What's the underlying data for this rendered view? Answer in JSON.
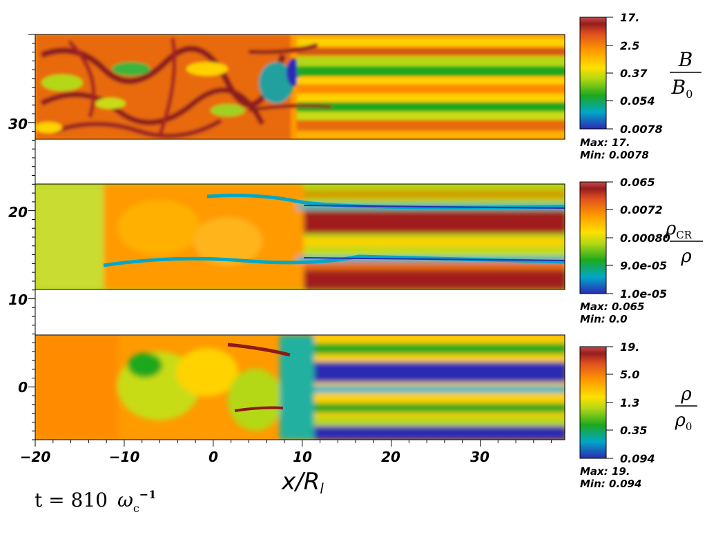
{
  "chart_data": {
    "type": "heatmap",
    "xlabel_main": "x/R",
    "xlabel_sub": "l",
    "xlim": [
      -20,
      39.5
    ],
    "ylim": [
      -6,
      40
    ],
    "xticks": [
      "−20",
      "−10",
      "0",
      "10",
      "20",
      "30"
    ],
    "yticks": [
      "0",
      "10",
      "20",
      "30"
    ],
    "time_prefix": "t = 810",
    "time_symbol": "ω",
    "time_sub": "c",
    "time_sup": "−1",
    "panels": [
      {
        "name": "B/B0",
        "label_num": "B",
        "label_den": "B",
        "label_den_sub": "0",
        "y_range": [
          28,
          40
        ],
        "colorbar_ticks": [
          "17.",
          "2.5",
          "0.37",
          "0.054",
          "0.0078"
        ],
        "max_text": "Max:  17.",
        "min_text": "Min:  0.0078",
        "scale": "log"
      },
      {
        "name": "rho_CR/rho",
        "label_num": "ρ",
        "label_num_sub": "CR",
        "label_den": "ρ",
        "y_range": [
          11,
          23
        ],
        "colorbar_ticks": [
          "0.065",
          "0.0072",
          "0.00080",
          "9.0e-05",
          "1.0e-05"
        ],
        "max_text": "Max:  0.065",
        "min_text": "Min:  0.0",
        "scale": "log"
      },
      {
        "name": "rho/rho0",
        "label_num": "ρ",
        "label_den": "ρ",
        "label_den_sub": "0",
        "y_range": [
          -6,
          6
        ],
        "colorbar_ticks": [
          "19.",
          "5.0",
          "1.3",
          "0.35",
          "0.094"
        ],
        "max_text": "Max:  19.",
        "min_text": "Min:  0.094",
        "scale": "log"
      }
    ],
    "colormap": [
      "#2b2bb3",
      "#00b4c8",
      "#1ea81e",
      "#c8dc14",
      "#ffd200",
      "#ff8c00",
      "#e05a14",
      "#a01e1e",
      "#c84646"
    ]
  }
}
